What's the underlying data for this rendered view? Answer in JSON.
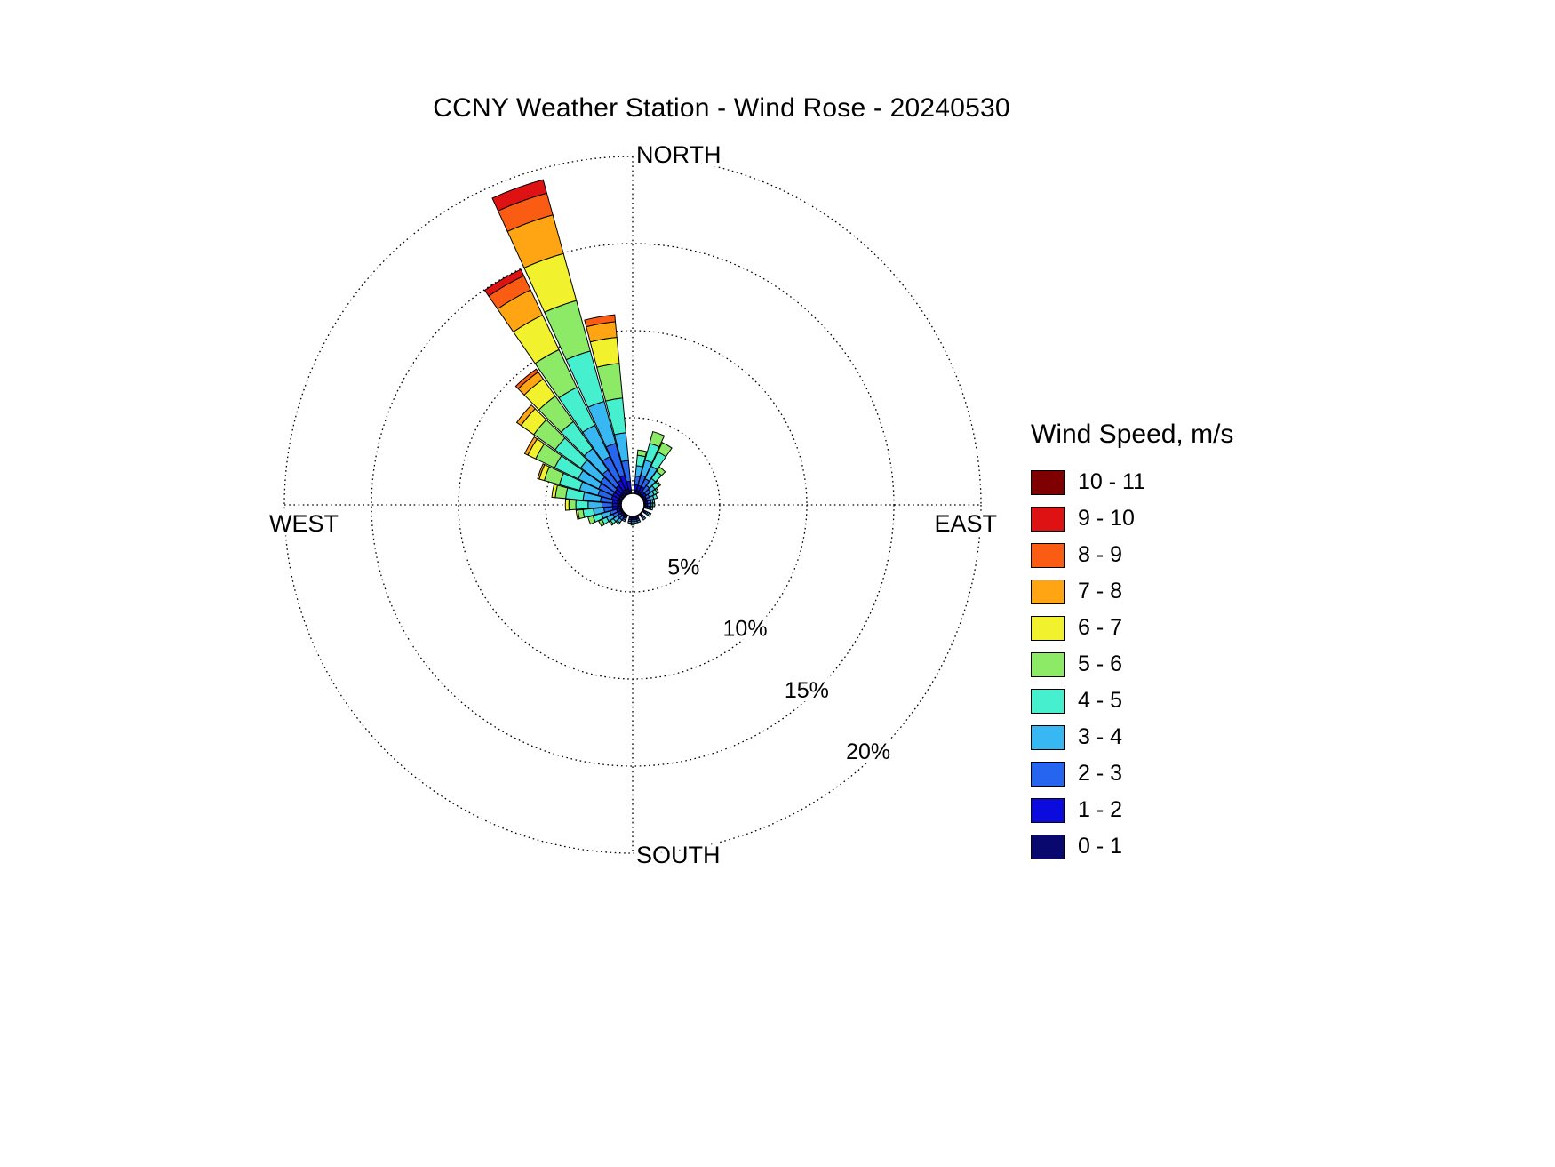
{
  "title": "CCNY Weather Station - Wind Rose - 20240530",
  "legend": {
    "title": "Wind Speed, m/s",
    "bins": [
      {
        "label": "10 - 11",
        "color": "#7E0000"
      },
      {
        "label": "9 - 10",
        "color": "#DE1212"
      },
      {
        "label": "8 - 9",
        "color": "#FB5C13"
      },
      {
        "label": "7 - 8",
        "color": "#FFA513"
      },
      {
        "label": "6 - 7",
        "color": "#F1F12E"
      },
      {
        "label": "5 - 6",
        "color": "#8CEA67"
      },
      {
        "label": "4 - 5",
        "color": "#46EFCE"
      },
      {
        "label": "3 - 4",
        "color": "#38B8F2"
      },
      {
        "label": "2 - 3",
        "color": "#2565EF"
      },
      {
        "label": "1 - 2",
        "color": "#0B0BDD"
      },
      {
        "label": "0 - 1",
        "color": "#08086E"
      }
    ]
  },
  "chart_data": {
    "type": "wind-rose-stacked-polar-bar",
    "title": "CCNY Weather Station - Wind Rose - 20240530",
    "direction_labels": {
      "north": "NORTH",
      "east": "EAST",
      "south": "SOUTH",
      "west": "WEST"
    },
    "ring_percent_values": [
      5,
      10,
      15,
      20
    ],
    "ring_labels": [
      "5%",
      "10%",
      "15%",
      "20%"
    ],
    "sector_width_deg": 10,
    "units": "percent of time",
    "speed_bins_mps": [
      "0 - 1",
      "1 - 2",
      "2 - 3",
      "3 - 4",
      "4 - 5",
      "5 - 6",
      "6 - 7",
      "7 - 8",
      "8 - 9",
      "9 - 10",
      "10 - 11"
    ],
    "petals": [
      {
        "dir_deg": 10,
        "values": [
          0.2,
          0.3,
          0.5,
          0.6,
          0.6,
          0.3,
          0,
          0,
          0,
          0,
          0
        ]
      },
      {
        "dir_deg": 20,
        "values": [
          0.2,
          0.3,
          0.6,
          0.9,
          1.0,
          0.7,
          0,
          0,
          0,
          0,
          0
        ]
      },
      {
        "dir_deg": 30,
        "values": [
          0.2,
          0.3,
          0.5,
          0.8,
          0.9,
          0.6,
          0,
          0,
          0,
          0,
          0
        ]
      },
      {
        "dir_deg": 40,
        "values": [
          0.1,
          0.2,
          0.4,
          0.5,
          0.5,
          0.3,
          0,
          0,
          0,
          0,
          0
        ]
      },
      {
        "dir_deg": 50,
        "values": [
          0.1,
          0.2,
          0.3,
          0.3,
          0.3,
          0.1,
          0,
          0,
          0,
          0,
          0
        ]
      },
      {
        "dir_deg": 60,
        "values": [
          0.1,
          0.1,
          0.2,
          0.3,
          0.2,
          0.1,
          0,
          0,
          0,
          0,
          0
        ]
      },
      {
        "dir_deg": 70,
        "values": [
          0.1,
          0.1,
          0.2,
          0.2,
          0.2,
          0,
          0,
          0,
          0,
          0,
          0
        ]
      },
      {
        "dir_deg": 80,
        "values": [
          0.1,
          0.1,
          0.2,
          0.1,
          0.1,
          0,
          0,
          0,
          0,
          0,
          0
        ]
      },
      {
        "dir_deg": 90,
        "values": [
          0.1,
          0.1,
          0.2,
          0.1,
          0.1,
          0,
          0,
          0,
          0,
          0,
          0
        ]
      },
      {
        "dir_deg": 100,
        "values": [
          0.1,
          0.1,
          0.1,
          0.1,
          0.1,
          0,
          0,
          0,
          0,
          0,
          0
        ]
      },
      {
        "dir_deg": 120,
        "values": [
          0.1,
          0.1,
          0.1,
          0.1,
          0.1,
          0,
          0,
          0,
          0,
          0,
          0
        ]
      },
      {
        "dir_deg": 140,
        "values": [
          0.1,
          0.1,
          0.1,
          0.1,
          0,
          0,
          0,
          0,
          0,
          0,
          0
        ]
      },
      {
        "dir_deg": 160,
        "values": [
          0.1,
          0.1,
          0.1,
          0.1,
          0,
          0,
          0,
          0,
          0,
          0,
          0
        ]
      },
      {
        "dir_deg": 170,
        "values": [
          0.1,
          0.1,
          0.1,
          0.1,
          0,
          0,
          0,
          0,
          0,
          0,
          0
        ]
      },
      {
        "dir_deg": 180,
        "values": [
          0.1,
          0.1,
          0.1,
          0.1,
          0.1,
          0,
          0,
          0,
          0,
          0,
          0
        ]
      },
      {
        "dir_deg": 190,
        "values": [
          0.1,
          0.1,
          0.1,
          0.1,
          0,
          0,
          0,
          0,
          0,
          0,
          0
        ]
      },
      {
        "dir_deg": 210,
        "values": [
          0.1,
          0.1,
          0.1,
          0.1,
          0,
          0,
          0,
          0,
          0,
          0,
          0
        ]
      },
      {
        "dir_deg": 220,
        "values": [
          0.1,
          0.1,
          0.2,
          0.2,
          0.1,
          0,
          0,
          0,
          0,
          0,
          0
        ]
      },
      {
        "dir_deg": 230,
        "values": [
          0.1,
          0.1,
          0.2,
          0.3,
          0.2,
          0.1,
          0,
          0,
          0,
          0,
          0
        ]
      },
      {
        "dir_deg": 240,
        "values": [
          0.1,
          0.2,
          0.3,
          0.4,
          0.3,
          0.2,
          0,
          0,
          0,
          0,
          0
        ]
      },
      {
        "dir_deg": 250,
        "values": [
          0.1,
          0.2,
          0.4,
          0.5,
          0.5,
          0.3,
          0,
          0,
          0,
          0,
          0
        ]
      },
      {
        "dir_deg": 260,
        "values": [
          0.2,
          0.3,
          0.5,
          0.6,
          0.6,
          0.3,
          0.1,
          0,
          0,
          0,
          0
        ]
      },
      {
        "dir_deg": 270,
        "values": [
          0.2,
          0.3,
          0.6,
          0.8,
          0.7,
          0.4,
          0.2,
          0,
          0,
          0,
          0
        ]
      },
      {
        "dir_deg": 280,
        "values": [
          0.2,
          0.3,
          0.7,
          1.0,
          1.0,
          0.6,
          0.2,
          0,
          0,
          0,
          0
        ]
      },
      {
        "dir_deg": 290,
        "values": [
          0.2,
          0.4,
          0.8,
          1.1,
          1.2,
          0.9,
          0.3,
          0.1,
          0,
          0,
          0
        ]
      },
      {
        "dir_deg": 300,
        "values": [
          0.2,
          0.4,
          0.9,
          1.3,
          1.5,
          1.2,
          0.5,
          0.2,
          0,
          0,
          0
        ]
      },
      {
        "dir_deg": 310,
        "values": [
          0.2,
          0.4,
          1.0,
          1.4,
          1.8,
          1.5,
          0.9,
          0.3,
          0,
          0,
          0
        ]
      },
      {
        "dir_deg": 320,
        "values": [
          0.2,
          0.5,
          1.1,
          1.5,
          1.9,
          1.8,
          1.2,
          0.5,
          0.2,
          0,
          0
        ]
      },
      {
        "dir_deg": 330,
        "values": [
          0.3,
          0.6,
          1.5,
          2.0,
          2.4,
          2.4,
          2.2,
          1.6,
          0.9,
          0.4,
          0
        ]
      },
      {
        "dir_deg": 340,
        "values": [
          0.3,
          0.8,
          1.9,
          2.5,
          3.0,
          3.0,
          2.8,
          2.3,
          1.3,
          0.8,
          0
        ]
      },
      {
        "dir_deg": 350,
        "values": [
          0.2,
          0.5,
          1.2,
          1.6,
          2.0,
          2.0,
          1.5,
          0.9,
          0.4,
          0,
          0
        ]
      }
    ]
  }
}
